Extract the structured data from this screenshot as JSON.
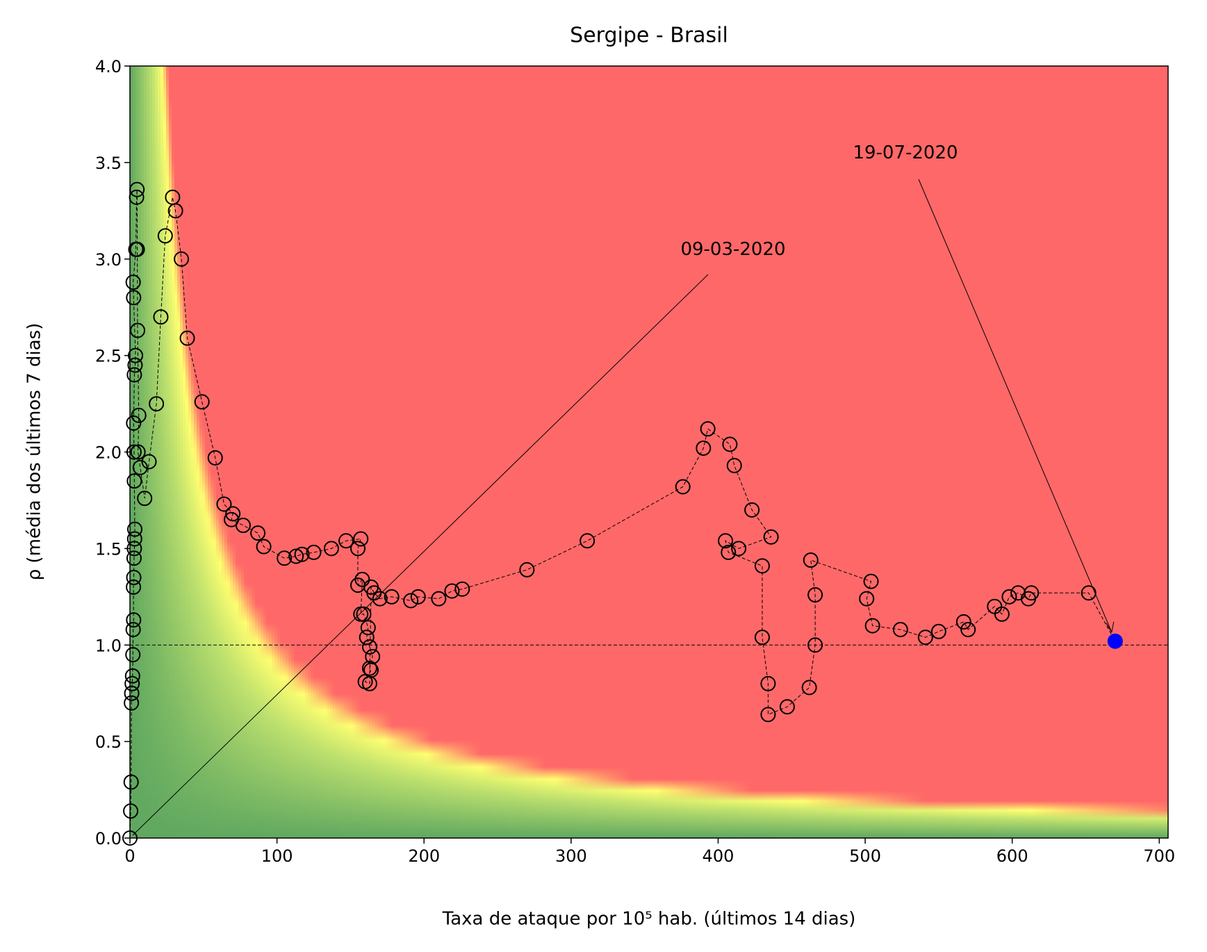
{
  "chart_data": {
    "type": "scatter",
    "title": "Sergipe - Brasil",
    "x_label": "Taxa de ataque por 10⁵ hab. (últimos 14 dias)",
    "y_label": "ρ (média dos últimos 7 dias)",
    "annotations": [
      "09-03-2020",
      "19-07-2020"
    ],
    "x": [
      0,
      0.5,
      0.8,
      1,
      1.2,
      1.5,
      1.8,
      2,
      2.2,
      2.5,
      2.4,
      2.6,
      2.8,
      3,
      3.2,
      3.3,
      3,
      2.8,
      2.5,
      3,
      3.5,
      3.8,
      2.5,
      2.2,
      4,
      4.5,
      4.8,
      5,
      5.2,
      6,
      5.5,
      7,
      10,
      13,
      18,
      21,
      24,
      29,
      31,
      35,
      39,
      49,
      58,
      64,
      70,
      69,
      77,
      87,
      91,
      105,
      113,
      117,
      125,
      137,
      147,
      157,
      155,
      155,
      158,
      157,
      159,
      162,
      161,
      163,
      165,
      163,
      164,
      160,
      163,
      164,
      166,
      170,
      178,
      191,
      196,
      210,
      219,
      226,
      270,
      311,
      376,
      390,
      393,
      408,
      411,
      423,
      436,
      414,
      405,
      407,
      430,
      430,
      434,
      434,
      447,
      462,
      466,
      466,
      463,
      504,
      501,
      505,
      524,
      541,
      550,
      567,
      570,
      588,
      593,
      598,
      604,
      611,
      613,
      652,
      670
    ],
    "y": [
      0,
      0.14,
      0.29,
      0.7,
      0.75,
      0.8,
      0.84,
      0.95,
      1.08,
      1.13,
      1.3,
      1.35,
      1.45,
      1.5,
      1.55,
      1.6,
      1.85,
      2.0,
      2.15,
      2.4,
      2.45,
      2.5,
      2.8,
      2.88,
      3.05,
      3.32,
      3.36,
      3.05,
      2.63,
      2.19,
      2.0,
      1.92,
      1.76,
      1.95,
      2.25,
      2.7,
      3.12,
      3.32,
      3.25,
      3.0,
      2.59,
      2.26,
      1.97,
      1.73,
      1.68,
      1.65,
      1.62,
      1.58,
      1.51,
      1.45,
      1.46,
      1.47,
      1.48,
      1.5,
      1.54,
      1.55,
      1.5,
      1.31,
      1.34,
      1.16,
      1.16,
      1.09,
      1.04,
      0.99,
      0.94,
      0.88,
      0.87,
      0.81,
      0.8,
      1.3,
      1.27,
      1.24,
      1.25,
      1.23,
      1.25,
      1.24,
      1.28,
      1.29,
      1.39,
      1.54,
      1.82,
      2.02,
      2.12,
      2.04,
      1.93,
      1.7,
      1.56,
      1.5,
      1.54,
      1.48,
      1.41,
      1.04,
      0.8,
      0.64,
      0.68,
      0.78,
      1.0,
      1.26,
      1.44,
      1.33,
      1.24,
      1.1,
      1.08,
      1.04,
      1.07,
      1.12,
      1.08,
      1.2,
      1.16,
      1.25,
      1.27,
      1.24,
      1.27,
      1.27,
      1.02
    ],
    "marker_color": "#000000",
    "highlight_color": "#0000ff",
    "reference_line": 1,
    "xlim": [
      0,
      706
    ],
    "ylim": [
      0,
      4
    ],
    "xticks": [
      0,
      100,
      200,
      300,
      400,
      500,
      600,
      700
    ],
    "yticks": [
      {
        "value": 0,
        "label": "0.0"
      },
      0.5,
      {
        "value": 1,
        "label": "1.0"
      },
      1.5,
      {
        "value": 2,
        "label": "2.0"
      },
      2.5,
      {
        "value": 3,
        "label": "3.0"
      },
      3.5,
      {
        "value": 4,
        "label": "4.0"
      }
    ]
  }
}
